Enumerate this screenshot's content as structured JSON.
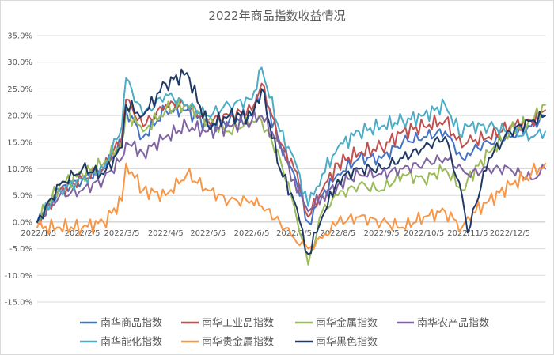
{
  "chart_data": {
    "type": "line",
    "title": "2022年商品指数收益情况",
    "xlabel": "",
    "ylabel": "",
    "ylim": [
      -15,
      35
    ],
    "y_ticks": [
      "-15.0%",
      "-10.0%",
      "-5.0%",
      "0.0%",
      "5.0%",
      "10.0%",
      "15.0%",
      "20.0%",
      "25.0%",
      "30.0%",
      "35.0%"
    ],
    "x_ticks": [
      "2022/1/5",
      "2022/2/5",
      "2022/3/5",
      "2022/4/5",
      "2022/5/5",
      "2022/6/5",
      "2022/7/5",
      "2022/8/5",
      "2022/9/5",
      "2022/10/5",
      "2022/11/5",
      "2022/12/5"
    ],
    "x_tick_dates": [
      "2022-01-05",
      "2022-02-05",
      "2022-03-05",
      "2022-04-05",
      "2022-05-05",
      "2022-06-05",
      "2022-07-05",
      "2022-08-05",
      "2022-09-05",
      "2022-10-05",
      "2022-11-05",
      "2022-12-05"
    ],
    "x_range": [
      "2022-01-04",
      "2022-12-30"
    ],
    "grid": true,
    "legend_position": "bottom",
    "x": [
      "2022-01-04",
      "2022-01-20",
      "2022-02-05",
      "2022-02-20",
      "2022-03-05",
      "2022-03-08",
      "2022-03-20",
      "2022-04-05",
      "2022-04-20",
      "2022-05-05",
      "2022-05-20",
      "2022-06-05",
      "2022-06-12",
      "2022-06-25",
      "2022-07-05",
      "2022-07-15",
      "2022-07-25",
      "2022-08-05",
      "2022-08-20",
      "2022-09-05",
      "2022-09-20",
      "2022-10-05",
      "2022-10-20",
      "2022-11-01",
      "2022-11-05",
      "2022-11-20",
      "2022-12-05",
      "2022-12-20",
      "2022-12-30"
    ],
    "series": [
      {
        "name": "南华商品指数",
        "color": "#4472C4",
        "values": [
          0,
          6,
          8,
          10,
          15,
          21,
          16,
          21,
          21,
          18,
          19,
          20,
          25,
          15,
          9,
          0,
          5,
          9,
          12,
          12,
          15,
          16,
          17,
          12,
          13,
          15,
          16,
          18,
          20
        ]
      },
      {
        "name": "南华工业品指数",
        "color": "#C0504D",
        "values": [
          0,
          6,
          8,
          10,
          16,
          23,
          18,
          22,
          22,
          19,
          20,
          21,
          26,
          15,
          10,
          1,
          6,
          11,
          13,
          14,
          17,
          18,
          19,
          14,
          15,
          16,
          18,
          19,
          21
        ]
      },
      {
        "name": "南华金属指数",
        "color": "#9BBB59",
        "values": [
          0,
          7,
          9,
          11,
          15,
          21,
          17,
          21,
          22,
          19,
          17,
          19,
          19,
          12,
          3,
          -8,
          2,
          5,
          7,
          6,
          9,
          8,
          10,
          6,
          8,
          13,
          17,
          19,
          22
        ]
      },
      {
        "name": "南华农产品指数",
        "color": "#8064A2",
        "values": [
          0,
          5,
          6,
          8,
          12,
          15,
          13,
          16,
          18,
          17,
          18,
          19,
          20,
          14,
          8,
          2,
          5,
          7,
          9,
          9,
          10,
          11,
          12,
          10,
          9,
          10,
          10,
          8,
          10
        ]
      },
      {
        "name": "南华能化指数",
        "color": "#4BACC6",
        "values": [
          0,
          6,
          8,
          10,
          18,
          27,
          20,
          24,
          22,
          20,
          22,
          23,
          29,
          17,
          12,
          3,
          9,
          14,
          17,
          18,
          19,
          20,
          22,
          16,
          18,
          18,
          17,
          16,
          17
        ]
      },
      {
        "name": "南华贵金属指数",
        "color": "#F79646",
        "values": [
          -1,
          -1,
          -1,
          0,
          4,
          11,
          6,
          5,
          9,
          6,
          4,
          4,
          3,
          0,
          -3,
          -5,
          -3,
          0,
          1,
          0,
          -1,
          1,
          2,
          -1,
          1,
          4,
          7,
          9,
          11
        ]
      },
      {
        "name": "南华黑色指数",
        "color": "#1F3864",
        "values": [
          0,
          7,
          10,
          9,
          14,
          22,
          20,
          26,
          28,
          18,
          20,
          20,
          25,
          10,
          4,
          -6,
          1,
          8,
          10,
          10,
          12,
          14,
          16,
          5,
          -2,
          12,
          17,
          19,
          20
        ]
      }
    ]
  }
}
